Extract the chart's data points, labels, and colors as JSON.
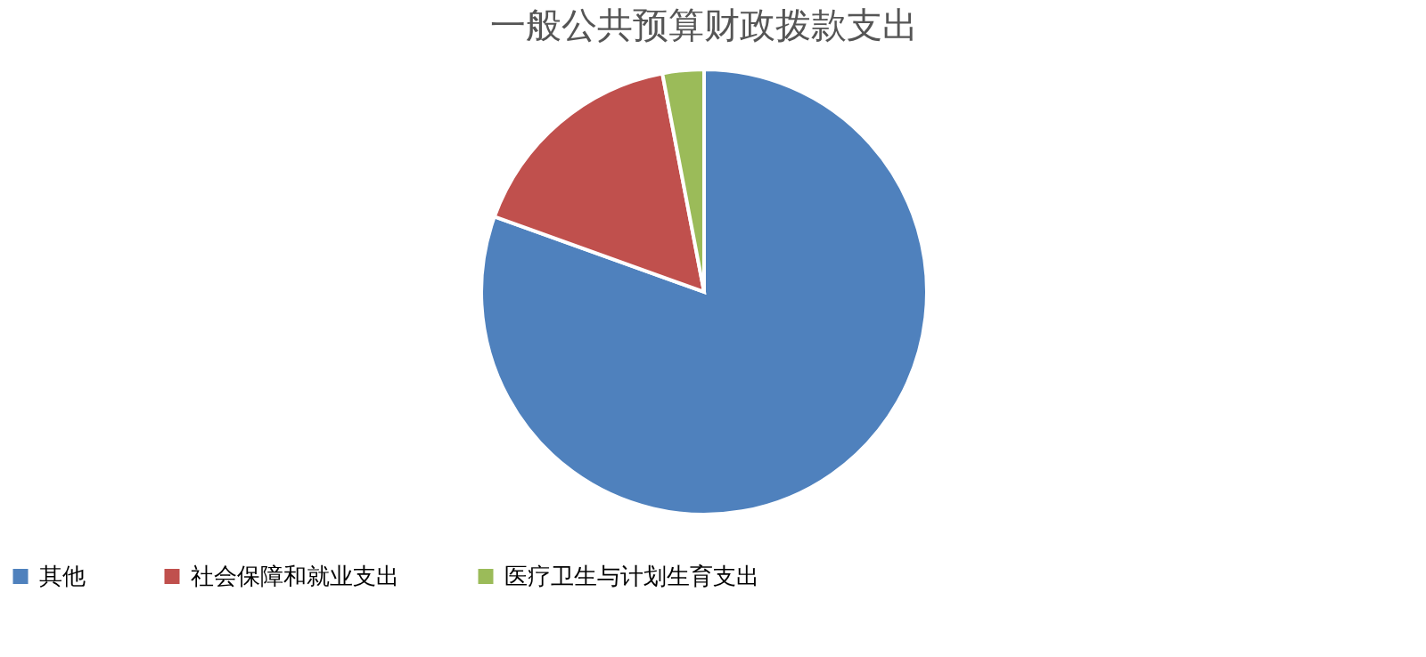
{
  "chart_data": {
    "type": "pie",
    "title": "一般公共预算财政拨款支出",
    "categories": [
      "其他",
      "社会保障和就业支出",
      "医疗卫生与计划生育支出"
    ],
    "values": [
      80.5,
      16.5,
      3
    ],
    "colors": [
      "#4f81bd",
      "#c0504d",
      "#9bbb59"
    ],
    "legend": "bottom"
  }
}
